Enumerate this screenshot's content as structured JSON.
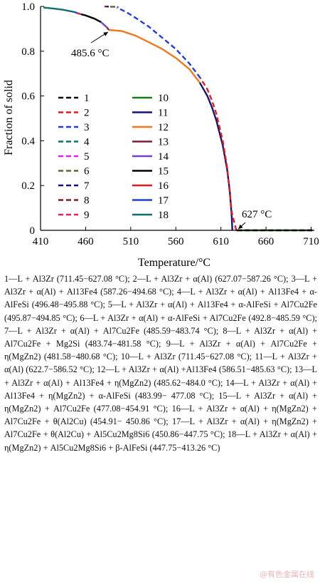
{
  "chart_data": {
    "type": "line",
    "xlabel": "Temperature/°C",
    "ylabel": "Fraction of solid",
    "xlim": [
      410,
      712
    ],
    "ylim": [
      0,
      1.0
    ],
    "xticks": [
      "410",
      "460",
      "510",
      "560",
      "610",
      "660",
      "710"
    ],
    "yticks": [
      "0",
      "0.2",
      "0.4",
      "0.6",
      "0.8",
      "1.0"
    ],
    "legend_position": "center-left",
    "annotations": [
      {
        "text": "485.6 °C",
        "x": 485.6,
        "y": 0.895
      },
      {
        "text": "627 °C",
        "x": 627,
        "y": 0.0
      }
    ],
    "series": [
      {
        "name": "1",
        "color": "#000000",
        "dash": true,
        "x": [
          711.45,
          650,
          627.08
        ],
        "y": [
          0.0,
          0.0,
          0.0
        ]
      },
      {
        "name": "2",
        "color": "#e31a1c",
        "dash": true,
        "x": [
          627.07,
          622,
          617,
          612,
          605,
          600,
          595,
          587.26
        ],
        "y": [
          0.0,
          0.08,
          0.28,
          0.4,
          0.52,
          0.58,
          0.63,
          0.68
        ]
      },
      {
        "name": "3",
        "color": "#1f3fd6",
        "dash": true,
        "x": [
          587.26,
          575,
          560,
          545,
          530,
          515,
          505,
          494.68
        ],
        "y": [
          0.68,
          0.745,
          0.81,
          0.86,
          0.91,
          0.95,
          0.975,
          0.995
        ]
      },
      {
        "name": "4",
        "color": "#0f6e6e",
        "dash": true,
        "x": [
          496.48,
          495.88
        ],
        "y": [
          0.996,
          0.997
        ]
      },
      {
        "name": "5",
        "color": "#e01fe0",
        "dash": true,
        "x": [
          495.87,
          494.85
        ],
        "y": [
          0.997,
          0.998
        ]
      },
      {
        "name": "6",
        "color": "#556b2f",
        "dash": true,
        "x": [
          492.8,
          485.59
        ],
        "y": [
          0.998,
          0.999
        ]
      },
      {
        "name": "7",
        "color": "#151570",
        "dash": true,
        "x": [
          485.59,
          483.74
        ],
        "y": [
          0.999,
          0.9993
        ]
      },
      {
        "name": "8",
        "color": "#7a1f1f",
        "dash": true,
        "x": [
          483.74,
          481.58
        ],
        "y": [
          0.9993,
          0.9996
        ]
      },
      {
        "name": "9",
        "color": "#e0206a",
        "dash": true,
        "x": [
          481.58,
          480.68
        ],
        "y": [
          0.9996,
          1.0
        ]
      },
      {
        "name": "10",
        "color": "#1a7a1a",
        "dash": false,
        "x": [
          711.45,
          627.08
        ],
        "y": [
          0.0,
          0.0
        ]
      },
      {
        "name": "11",
        "color": "#14147a",
        "dash": false,
        "x": [
          622.7,
          622,
          620,
          617,
          612,
          605,
          600,
          595,
          586.52
        ],
        "y": [
          0.0,
          0.06,
          0.17,
          0.27,
          0.38,
          0.49,
          0.55,
          0.6,
          0.66
        ]
      },
      {
        "name": "12",
        "color": "#f07820",
        "dash": false,
        "x": [
          586.51,
          575,
          560,
          545,
          530,
          515,
          500,
          485.63
        ],
        "y": [
          0.66,
          0.72,
          0.77,
          0.81,
          0.84,
          0.87,
          0.89,
          0.895
        ]
      },
      {
        "name": "13",
        "color": "#7a1f3a",
        "dash": false,
        "x": [
          485.62,
          484.0
        ],
        "y": [
          0.895,
          0.905
        ]
      },
      {
        "name": "14",
        "color": "#7040d0",
        "dash": false,
        "x": [
          483.99,
          477.08
        ],
        "y": [
          0.905,
          0.93
        ]
      },
      {
        "name": "15",
        "color": "#000000",
        "dash": false,
        "x": [
          477.08,
          470,
          460,
          454.91
        ],
        "y": [
          0.93,
          0.945,
          0.96,
          0.965
        ]
      },
      {
        "name": "16",
        "color": "#e31a1c",
        "dash": false,
        "x": [
          454.91,
          450.86
        ],
        "y": [
          0.965,
          0.97
        ]
      },
      {
        "name": "17",
        "color": "#1f3fd6",
        "dash": false,
        "x": [
          450.86,
          447.75
        ],
        "y": [
          0.97,
          0.975
        ]
      },
      {
        "name": "18",
        "color": "#0f6e6e",
        "dash": false,
        "x": [
          447.75,
          435,
          425,
          413.26
        ],
        "y": [
          0.975,
          0.985,
          0.99,
          0.995
        ]
      }
    ]
  },
  "caption": {
    "entries": [
      "1—L + Al3Zr (711.45−627.08 °C);",
      "2—L + Al3Zr + α(Al) (627.07−587.26 °C);",
      "3—L + Al3Zr + α(Al) + Al13Fe4 (587.26−494.68 °C);",
      "4—L + Al3Zr + α(Al) + Al13Fe4 + α-AlFeSi (496.48−495.88 °C);",
      "5—L + Al3Zr + α(Al) + Al13Fe4 + α-AlFeSi + Al7Cu2Fe (495.87−494.85 °C);",
      "6—L + Al3Zr + α(Al) + α-AlFeSi + Al7Cu2Fe (492.8−485.59 °C);",
      "7—L + Al3Zr + α(Al) + Al7Cu2Fe (485.59−483.74 °C);",
      "8—L + Al3Zr + α(Al) + Al7Cu2Fe + Mg2Si (483.74−481.58 °C);",
      "9—L + Al3Zr + α(Al) + Al7Cu2Fe + η(MgZn2) (481.58−480.68 °C);",
      "10—L + Al3Zr (711.45−627.08 °C);",
      "11—L + Al3Zr + α(Al) (622.7−586.52 °C);",
      "12—L + Al3Zr + α(Al) +Al13Fe4 (586.51−485.63 °C);",
      "13—L + Al3Zr + α(Al) + Al13Fe4 + η(MgZn2) (485.62−484.0 °C);",
      "14—L + Al3Zr + α(Al) + Al13Fe4 + η(MgZn2) + α-AlFeSi (483.99− 477.08 °C);",
      "15—L + Al3Zr + α(Al) + η(MgZn2) + Al7Cu2Fe (477.08−454.91 °C);",
      "16—L + Al3Zr + α(Al) + η(MgZn2) + Al7Cu2Fe + θ(Al2Cu) (454.91− 450.86 °C);",
      "17—L + Al3Zr + α(Al) + η(MgZn2) + Al7Cu2Fe + θ(Al2Cu) + Al5Cu2Mg8Si6 (450.86−447.75 °C);",
      "18—L + Al3Zr + α(Al) + η(MgZn2) + Al5Cu2Mg8Si6 + β-AlFeSi (447.75−413.26 °C)"
    ]
  },
  "watermark": "@有色金属在线"
}
